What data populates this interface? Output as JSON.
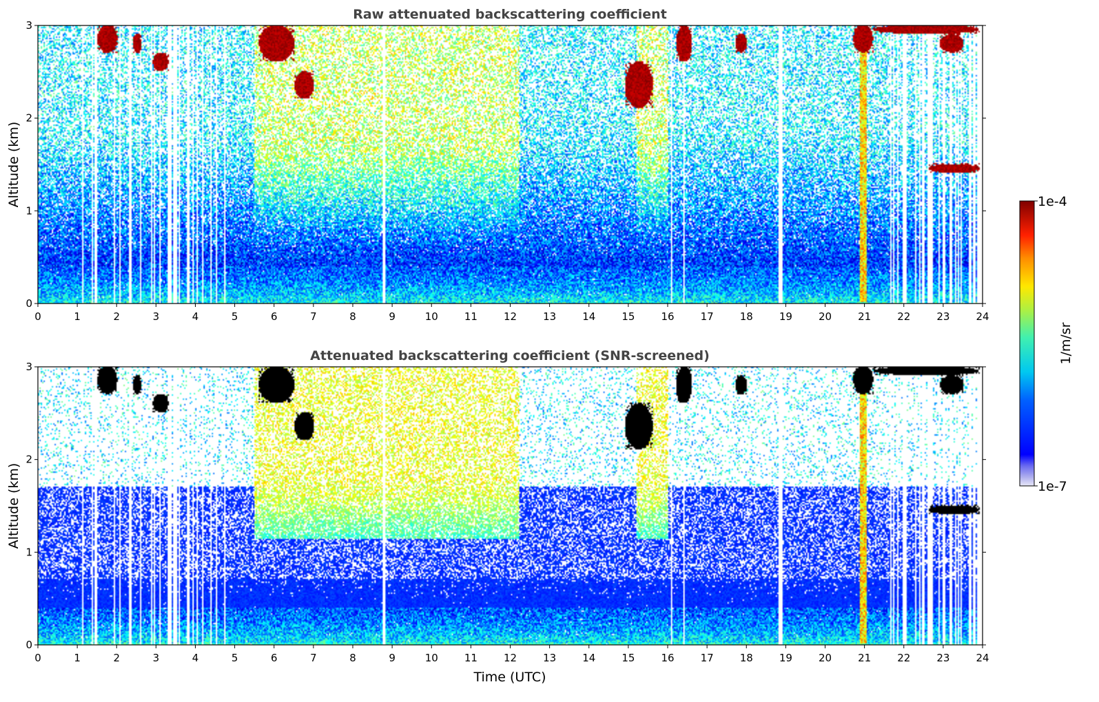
{
  "chart_data": [
    {
      "type": "heatmap",
      "title": "Raw attenuated backscattering coefficient",
      "xlabel": "",
      "ylabel": "Altitude (km)",
      "xlim": [
        0,
        24
      ],
      "ylim": [
        0,
        3
      ],
      "xticks": [
        "0",
        "1",
        "2",
        "3",
        "4",
        "5",
        "6",
        "7",
        "8",
        "9",
        "10",
        "11",
        "12",
        "13",
        "14",
        "15",
        "16",
        "17",
        "18",
        "19",
        "20",
        "21",
        "22",
        "23",
        "24"
      ],
      "yticks": [
        "0",
        "1",
        "2",
        "3"
      ],
      "colorscale": "jet",
      "color_range": [
        "1e-7",
        "1e-4"
      ],
      "screened": false,
      "features": {
        "aerosol_layer_top_km": 0.5,
        "enhanced_background_hours": [
          [
            5.5,
            12.2
          ],
          [
            15.2,
            16.0
          ]
        ],
        "clouds": [
          {
            "t": [
              1.5,
              2.0
            ],
            "z": [
              2.7,
              3.0
            ]
          },
          {
            "t": [
              2.4,
              2.6
            ],
            "z": [
              2.7,
              2.9
            ]
          },
          {
            "t": [
              2.9,
              3.3
            ],
            "z": [
              2.5,
              2.7
            ]
          },
          {
            "t": [
              5.6,
              6.5
            ],
            "z": [
              2.6,
              3.0
            ]
          },
          {
            "t": [
              6.5,
              7.0
            ],
            "z": [
              2.2,
              2.5
            ]
          },
          {
            "t": [
              14.9,
              15.6
            ],
            "z": [
              2.1,
              2.6
            ]
          },
          {
            "t": [
              16.2,
              16.6
            ],
            "z": [
              2.6,
              3.0
            ]
          },
          {
            "t": [
              17.7,
              18.0
            ],
            "z": [
              2.7,
              2.9
            ]
          },
          {
            "t": [
              20.7,
              21.2
            ],
            "z": [
              2.7,
              3.0
            ]
          },
          {
            "t": [
              21.2,
              23.9
            ],
            "z": [
              2.9,
              3.0
            ]
          },
          {
            "t": [
              22.9,
              23.5
            ],
            "z": [
              2.7,
              2.9
            ]
          },
          {
            "t": [
              22.6,
              23.9
            ],
            "z": [
              1.4,
              1.5
            ]
          }
        ],
        "precip_column": {
          "t": 20.95,
          "z": [
            0,
            3.0
          ]
        }
      }
    },
    {
      "type": "heatmap",
      "title": "Attenuated backscattering coefficient (SNR-screened)",
      "xlabel": "Time (UTC)",
      "ylabel": "Altitude (km)",
      "xlim": [
        0,
        24
      ],
      "ylim": [
        0,
        3
      ],
      "xticks": [
        "0",
        "1",
        "2",
        "3",
        "4",
        "5",
        "6",
        "7",
        "8",
        "9",
        "10",
        "11",
        "12",
        "13",
        "14",
        "15",
        "16",
        "17",
        "18",
        "19",
        "20",
        "21",
        "22",
        "23",
        "24"
      ],
      "yticks": [
        "0",
        "1",
        "2",
        "3"
      ],
      "colorscale": "jet",
      "color_range": [
        "1e-7",
        "1e-4"
      ],
      "screened": true
    }
  ],
  "colorbar": {
    "label": "1/m/sr",
    "top_label": "1e-4",
    "bottom_label": "1e-7"
  }
}
